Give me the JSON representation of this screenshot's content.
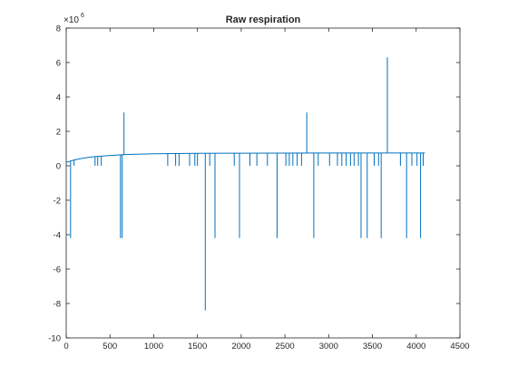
{
  "chart_data": {
    "type": "line",
    "title": "Raw respiration",
    "xlabel": "",
    "ylabel": "",
    "xlim": [
      0,
      4500
    ],
    "ylim": [
      -10,
      8
    ],
    "y_exponent_label": "×10",
    "y_exponent_power": "6",
    "x_ticks": [
      "0",
      "500",
      "1000",
      "1500",
      "2000",
      "2500",
      "3000",
      "3500",
      "4000",
      "4500"
    ],
    "y_ticks": [
      "-10",
      "-8",
      "-6",
      "-4",
      "-2",
      "0",
      "2",
      "4",
      "6",
      "8"
    ],
    "x_tick_values": [
      0,
      500,
      1000,
      1500,
      2000,
      2500,
      3000,
      3500,
      4000,
      4500
    ],
    "y_tick_values": [
      -10,
      -8,
      -6,
      -4,
      -2,
      0,
      2,
      4,
      6,
      8
    ],
    "grid": false,
    "legend": "none",
    "line_color": "#0072BD",
    "series": [
      {
        "baseline": {
          "x": [
            0,
            100,
            200,
            300,
            500,
            700,
            1000,
            1500,
            2000,
            3000,
            4100
          ],
          "y": [
            0.2,
            0.35,
            0.45,
            0.52,
            0.6,
            0.66,
            0.7,
            0.72,
            0.73,
            0.74,
            0.74
          ]
        },
        "spikes": [
          {
            "x": 50,
            "y": -4.2
          },
          {
            "x": 90,
            "y": 0.0
          },
          {
            "x": 330,
            "y": 0.0
          },
          {
            "x": 360,
            "y": 0.0
          },
          {
            "x": 400,
            "y": 0.0
          },
          {
            "x": 620,
            "y": -4.2
          },
          {
            "x": 640,
            "y": -4.2
          },
          {
            "x": 660,
            "y": 3.1
          },
          {
            "x": 1160,
            "y": 0.0
          },
          {
            "x": 1250,
            "y": 0.0
          },
          {
            "x": 1290,
            "y": 0.0
          },
          {
            "x": 1410,
            "y": 0.0
          },
          {
            "x": 1470,
            "y": 0.0
          },
          {
            "x": 1500,
            "y": 0.0
          },
          {
            "x": 1590,
            "y": -8.4
          },
          {
            "x": 1640,
            "y": 0.0
          },
          {
            "x": 1700,
            "y": -4.2
          },
          {
            "x": 1920,
            "y": 0.0
          },
          {
            "x": 1980,
            "y": -4.2
          },
          {
            "x": 2100,
            "y": 0.0
          },
          {
            "x": 2180,
            "y": 0.0
          },
          {
            "x": 2300,
            "y": 0.0
          },
          {
            "x": 2410,
            "y": -4.2
          },
          {
            "x": 2510,
            "y": 0.0
          },
          {
            "x": 2550,
            "y": 0.0
          },
          {
            "x": 2590,
            "y": 0.0
          },
          {
            "x": 2640,
            "y": 0.0
          },
          {
            "x": 2690,
            "y": 0.0
          },
          {
            "x": 2750,
            "y": 3.1
          },
          {
            "x": 2830,
            "y": -4.2
          },
          {
            "x": 2880,
            "y": 0.0
          },
          {
            "x": 3010,
            "y": 0.0
          },
          {
            "x": 3100,
            "y": 0.0
          },
          {
            "x": 3150,
            "y": 0.0
          },
          {
            "x": 3200,
            "y": 0.0
          },
          {
            "x": 3250,
            "y": 0.0
          },
          {
            "x": 3290,
            "y": 0.0
          },
          {
            "x": 3340,
            "y": 0.0
          },
          {
            "x": 3370,
            "y": -4.2
          },
          {
            "x": 3440,
            "y": -4.2
          },
          {
            "x": 3520,
            "y": 0.0
          },
          {
            "x": 3570,
            "y": 0.0
          },
          {
            "x": 3600,
            "y": -4.2
          },
          {
            "x": 3670,
            "y": 6.3
          },
          {
            "x": 3820,
            "y": 0.0
          },
          {
            "x": 3890,
            "y": -4.2
          },
          {
            "x": 3950,
            "y": 0.0
          },
          {
            "x": 4010,
            "y": 0.0
          },
          {
            "x": 4050,
            "y": -4.2
          },
          {
            "x": 4080,
            "y": 0.0
          }
        ]
      }
    ]
  }
}
